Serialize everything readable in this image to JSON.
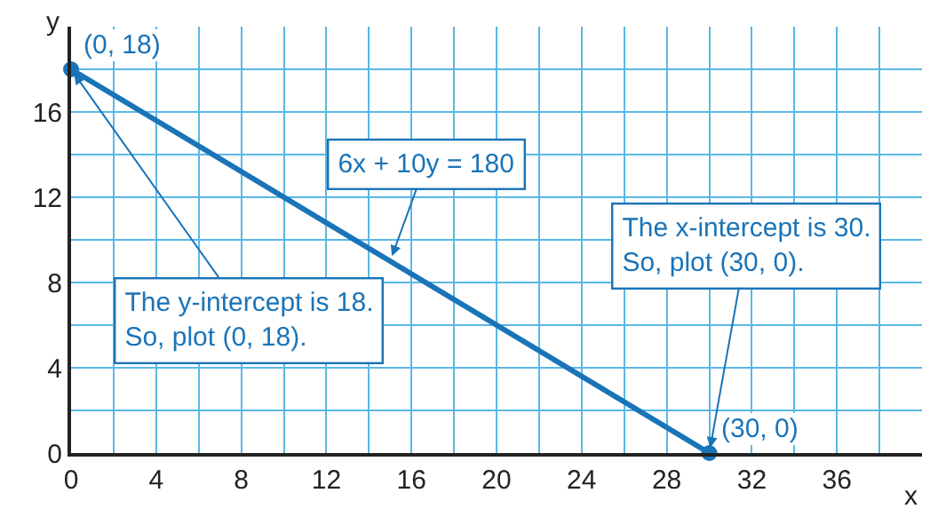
{
  "chart_data": {
    "type": "line",
    "xlabel": "x",
    "ylabel": "y",
    "x": [
      0,
      30
    ],
    "series": [
      {
        "color": "#1a74b8",
        "values": [
          18,
          0
        ]
      }
    ],
    "marker": "circle",
    "line_style": "solid",
    "grid": true,
    "xlim": [
      0,
      40
    ],
    "ylim": [
      0,
      20
    ],
    "xticks": [
      0,
      {
        "value": 2,
        "label": null
      },
      4,
      {
        "value": 6,
        "label": null
      },
      8,
      {
        "value": 10,
        "label": null
      },
      12,
      {
        "value": 14,
        "label": null
      },
      16,
      {
        "value": 18,
        "label": null
      },
      20,
      {
        "value": 22,
        "label": null
      },
      24,
      {
        "value": 26,
        "label": null
      },
      28,
      {
        "value": 30,
        "label": null
      },
      32,
      {
        "value": 34,
        "label": null
      },
      36,
      {
        "value": 38,
        "label": null
      }
    ],
    "yticks": [
      0,
      {
        "value": 2,
        "label": null
      },
      4,
      {
        "value": 6,
        "label": null
      },
      8,
      {
        "value": 10,
        "label": null
      },
      12,
      {
        "value": 14,
        "label": null
      },
      16,
      {
        "value": 18,
        "label": null
      }
    ],
    "annotations": [
      {
        "text": "(0, 18)",
        "x": 0,
        "y": 18
      },
      {
        "text": "(30, 0)",
        "x": 30,
        "y": 0
      },
      {
        "text": "6x + 10y = 180",
        "x": 15,
        "y": 9
      },
      {
        "text": "The y-intercept is 18.\nSo, plot (0, 18).",
        "x": 0,
        "y": 18
      },
      {
        "text": "The x-intercept is 30.\nSo, plot (30, 0).",
        "x": 30,
        "y": 0
      }
    ]
  }
}
